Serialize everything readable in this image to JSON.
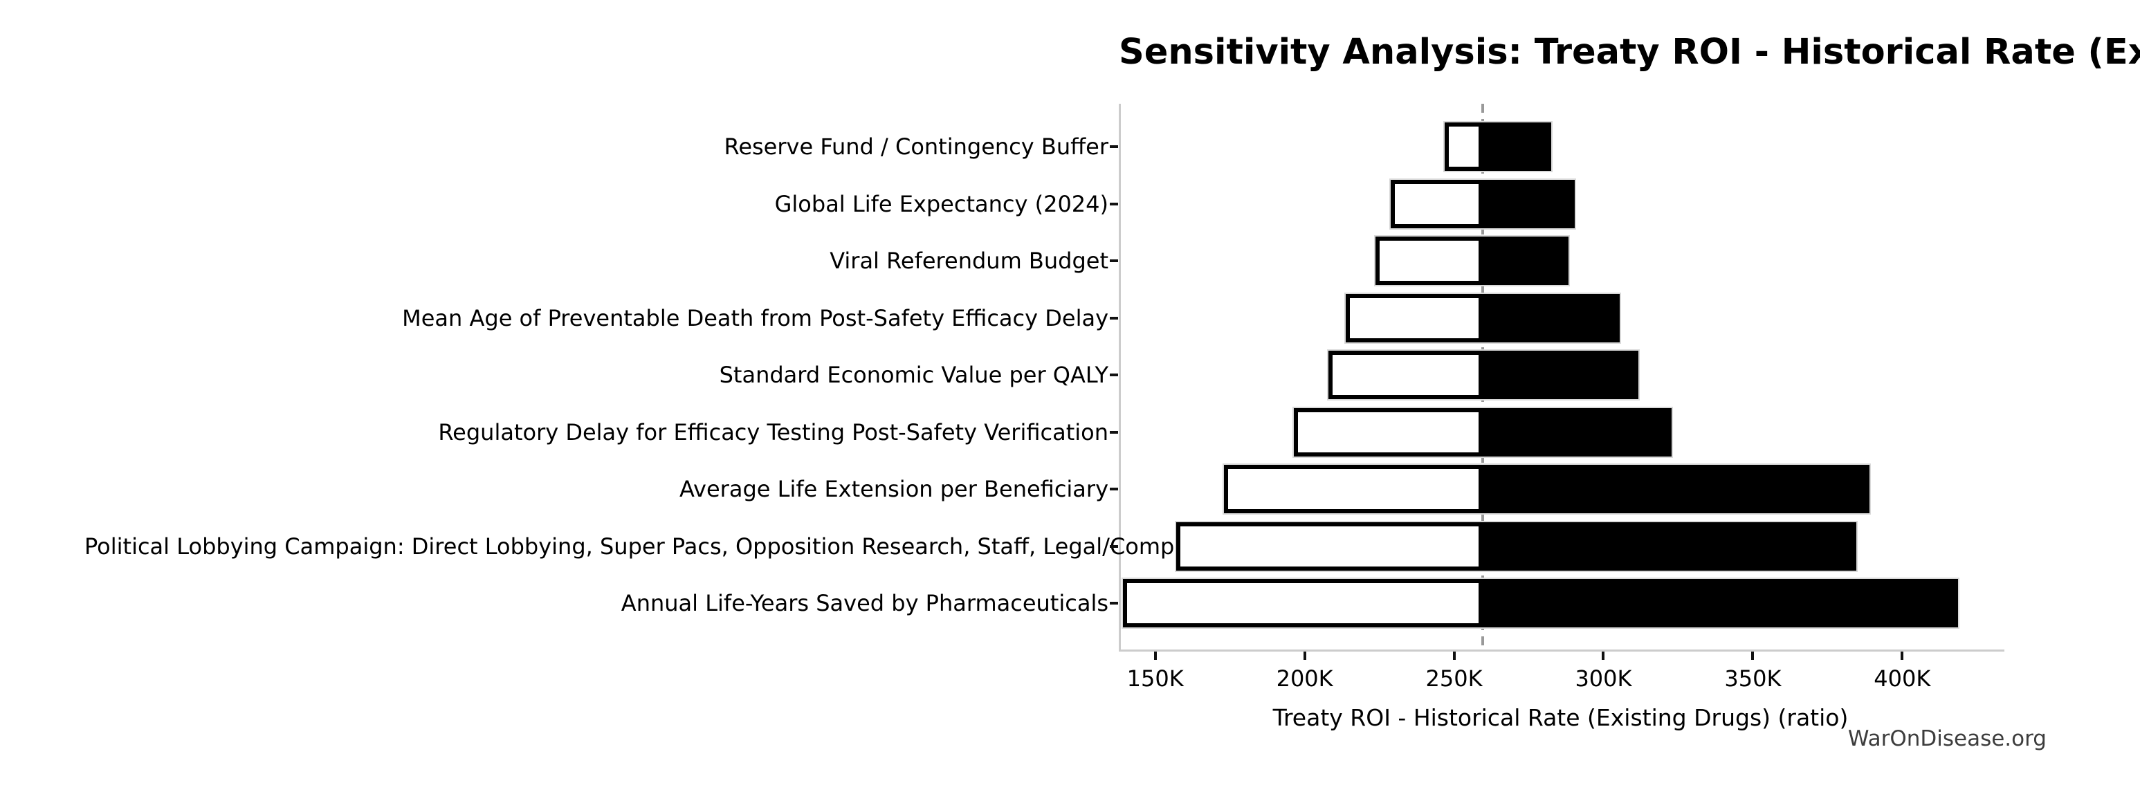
{
  "header": {
    "title": "Sensitivity Analysis: Treaty ROI - Historical Rate (Existing Drugs)"
  },
  "footer": {
    "watermark": "WarOnDisease.org"
  },
  "chart_data": {
    "type": "bar",
    "variant": "tornado-sensitivity",
    "orientation": "horizontal",
    "title": "Sensitivity Analysis: Treaty ROI - Historical Rate (Existing Drugs)",
    "xlabel": "Treaty ROI - Historical Rate (Existing Drugs) (ratio)",
    "grid": false,
    "legend_position": "none",
    "baseline_value": 258800,
    "xlim": [
      137800,
      433500
    ],
    "x_ticks": [
      {
        "value": 150000,
        "label": "150K"
      },
      {
        "value": 200000,
        "label": "200K"
      },
      {
        "value": 250000,
        "label": "250K"
      },
      {
        "value": 300000,
        "label": "300K"
      },
      {
        "value": 350000,
        "label": "350K"
      },
      {
        "value": 400000,
        "label": "400K"
      }
    ],
    "categories": [
      "Reserve Fund / Contingency Buffer",
      "Global Life Expectancy (2024)",
      "Viral Referendum Budget",
      "Mean Age of Preventable Death from Post-Safety Efficacy Delay",
      "Standard Economic Value per QALY",
      "Regulatory Delay for Efficacy Testing Post-Safety Verification",
      "Average Life Extension per Beneficiary",
      "Political Lobbying Campaign: Direct Lobbying, Super Pacs, Opposition Research, Staff, Legal/Compliance",
      "Annual Life-Years Saved by Pharmaceuticals"
    ],
    "series": [
      {
        "name": "low",
        "color": "#ffffff",
        "edge_color": "#000000",
        "values": [
          246100,
          228000,
          223100,
          213000,
          207300,
          195700,
          172300,
          156300,
          138500
        ]
      },
      {
        "name": "high",
        "color": "#000000",
        "edge_color": "#d9d9d9",
        "values": [
          281800,
          289600,
          287700,
          304800,
          310900,
          322200,
          388300,
          383900,
          418100
        ]
      }
    ],
    "colors": {
      "baseline_line": "#999999",
      "spine": "#cccccc",
      "bar_halo": "#d9d9d9",
      "text": "#000000",
      "watermark_text": "#3d3d3d"
    }
  }
}
